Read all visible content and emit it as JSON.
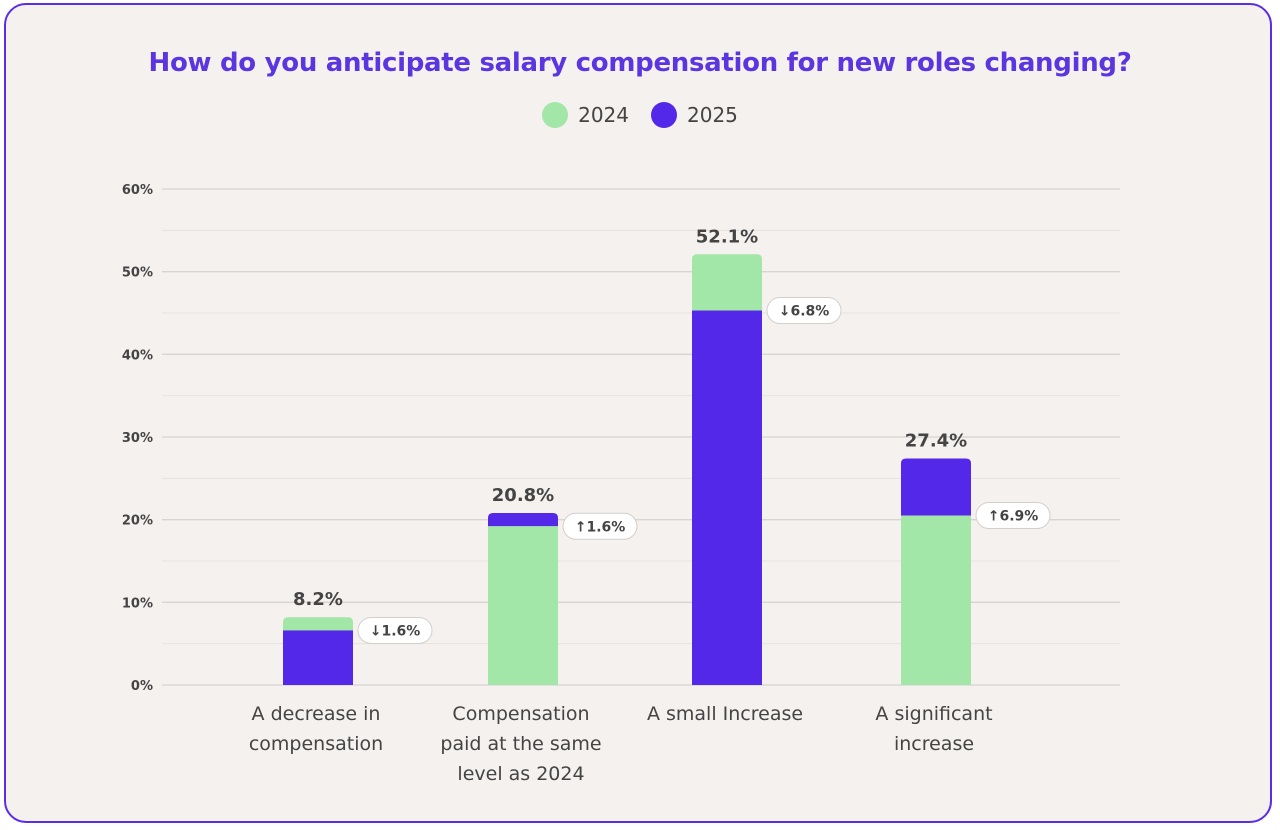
{
  "colors": {
    "series_2024": "#a2e6a8",
    "series_2025": "#5428e8",
    "grid": "#d8d4d2"
  },
  "chart_data": {
    "type": "bar",
    "stacked": true,
    "title": "How do you anticipate salary compensation for new roles changing?",
    "legend": [
      "2024",
      "2025"
    ],
    "ylim": [
      0,
      60
    ],
    "y_ticks": [
      0,
      10,
      20,
      30,
      40,
      50,
      60
    ],
    "y_tick_labels": [
      "0%",
      "10%",
      "20%",
      "30%",
      "40%",
      "50%",
      "60%"
    ],
    "categories": [
      {
        "id": "decrease",
        "lines": [
          "A decrease in",
          "compensation"
        ]
      },
      {
        "id": "same-level",
        "lines": [
          "Compensation",
          "paid at the same",
          "level as 2024"
        ]
      },
      {
        "id": "small-increase",
        "lines": [
          "A small Increase"
        ]
      },
      {
        "id": "significant-increase",
        "lines": [
          "A significant",
          "increase"
        ]
      }
    ],
    "bars": [
      {
        "total": 8.2,
        "total_label": "8.2%",
        "bottom_series": "2025",
        "bottom_value": 6.6,
        "change": "↓1.6%"
      },
      {
        "total": 20.8,
        "total_label": "20.8%",
        "bottom_series": "2024",
        "bottom_value": 19.2,
        "change": "↑1.6%"
      },
      {
        "total": 52.1,
        "total_label": "52.1%",
        "bottom_series": "2025",
        "bottom_value": 45.3,
        "change": "↓6.8%"
      },
      {
        "total": 27.4,
        "total_label": "27.4%",
        "bottom_series": "2024",
        "bottom_value": 20.5,
        "change": "↑6.9%"
      }
    ]
  }
}
